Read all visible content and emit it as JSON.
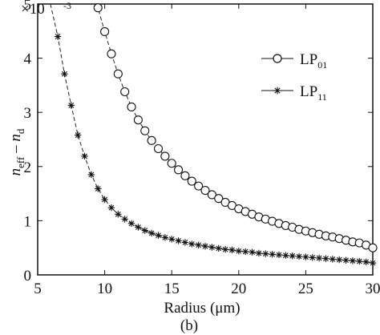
{
  "chart_data": {
    "type": "line",
    "xlabel": "Radius (μm)",
    "ylabel_main": "n",
    "ylabel_sub_eff": "eff",
    "ylabel_minus": " – ",
    "ylabel_sub_d": "d",
    "y_scale_label": "×10",
    "y_scale_exp": "-3",
    "caption": "(b)",
    "xlim": [
      5,
      30
    ],
    "ylim": [
      0,
      5
    ],
    "xticks": [
      "5",
      "10",
      "15",
      "20",
      "25",
      "30"
    ],
    "yticks": [
      "0",
      "1",
      "2",
      "3",
      "4",
      "5"
    ],
    "grid": false,
    "legend_position": "top-right",
    "series": [
      {
        "name_main": "LP",
        "name_sub": "01",
        "marker": "circle",
        "x": [
          9.5,
          10.0,
          10.5,
          11.0,
          11.5,
          12.0,
          12.5,
          13.0,
          13.5,
          14.0,
          14.5,
          15.0,
          15.5,
          16.0,
          16.5,
          17.0,
          17.5,
          18.0,
          18.5,
          19.0,
          19.5,
          20.0,
          20.5,
          21.0,
          21.5,
          22.0,
          22.5,
          23.0,
          23.5,
          24.0,
          24.5,
          25.0,
          25.5,
          26.0,
          26.5,
          27.0,
          27.5,
          28.0,
          28.5,
          29.0,
          29.5,
          30.0
        ],
        "y": [
          4.93,
          4.49,
          4.08,
          3.71,
          3.38,
          3.1,
          2.86,
          2.66,
          2.48,
          2.33,
          2.19,
          2.06,
          1.94,
          1.83,
          1.73,
          1.64,
          1.56,
          1.48,
          1.41,
          1.34,
          1.28,
          1.22,
          1.17,
          1.12,
          1.07,
          1.03,
          0.99,
          0.95,
          0.91,
          0.88,
          0.84,
          0.81,
          0.78,
          0.75,
          0.72,
          0.7,
          0.67,
          0.64,
          0.61,
          0.59,
          0.55,
          0.5
        ]
      },
      {
        "name_main": "LP",
        "name_sub": "11",
        "marker": "star",
        "x": [
          6.5,
          7.0,
          7.5,
          8.0,
          8.5,
          9.0,
          9.5,
          10.0,
          10.5,
          11.0,
          11.5,
          12.0,
          12.5,
          13.0,
          13.5,
          14.0,
          14.5,
          15.0,
          15.5,
          16.0,
          16.5,
          17.0,
          17.5,
          18.0,
          18.5,
          19.0,
          19.5,
          20.0,
          20.5,
          21.0,
          21.5,
          22.0,
          22.5,
          23.0,
          23.5,
          24.0,
          24.5,
          25.0,
          25.5,
          26.0,
          26.5,
          27.0,
          27.5,
          28.0,
          28.5,
          29.0,
          29.5,
          30.0
        ],
        "y": [
          4.4,
          3.71,
          3.13,
          2.58,
          2.19,
          1.85,
          1.59,
          1.39,
          1.24,
          1.12,
          1.03,
          0.95,
          0.88,
          0.82,
          0.77,
          0.73,
          0.69,
          0.66,
          0.63,
          0.6,
          0.57,
          0.55,
          0.53,
          0.51,
          0.49,
          0.47,
          0.46,
          0.44,
          0.43,
          0.42,
          0.4,
          0.39,
          0.38,
          0.37,
          0.36,
          0.35,
          0.34,
          0.33,
          0.32,
          0.31,
          0.3,
          0.29,
          0.28,
          0.27,
          0.26,
          0.25,
          0.24,
          0.22
        ]
      }
    ]
  }
}
